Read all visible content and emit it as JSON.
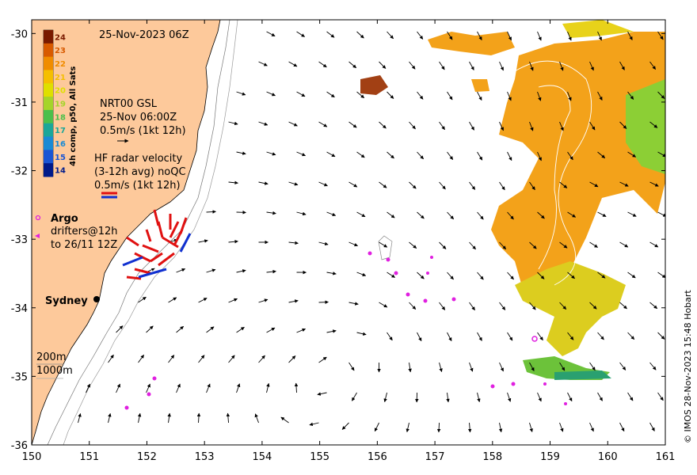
{
  "title_date": "25-Nov-2023 06Z",
  "colorbar": {
    "label": "4h comp, p50, All Sats",
    "ticks": [
      "24",
      "23",
      "22",
      "21",
      "20",
      "19",
      "18",
      "17",
      "16",
      "15",
      "14"
    ],
    "tick_colors": [
      "#7a1a00",
      "#d85a00",
      "#f08c00",
      "#f5bf00",
      "#dfdf00",
      "#a5d42a",
      "#4bbf4b",
      "#1aa699",
      "#1a8ad4",
      "#1a55d4",
      "#001a8a"
    ]
  },
  "gsl_legend": {
    "line1": "NRT00 GSL",
    "line2": "25-Nov 06:00Z",
    "line3": "0.5m/s (1kt 12h)"
  },
  "radar_legend": {
    "line1": "HF radar velocity",
    "line2": "(3-12h avg) noQC",
    "line3": "0.5m/s (1kt 12h)"
  },
  "argo_legend": {
    "argo": "Argo",
    "drifters1": "drifters@12h",
    "drifters2": "to 26/11 12Z"
  },
  "city": "Sydney",
  "depth_legend": {
    "d200": "200m",
    "d1000": "1000m"
  },
  "credit": "© IMOS 28-Nov-2023 15:48 Hobart",
  "axes": {
    "x_ticks": [
      "150",
      "151",
      "152",
      "153",
      "154",
      "155",
      "156",
      "157",
      "158",
      "159",
      "160",
      "161"
    ],
    "y_ticks": [
      "-30",
      "-31",
      "-32",
      "-33",
      "-34",
      "-35",
      "-36"
    ],
    "xlim": [
      150,
      161
    ],
    "ylim": [
      -36,
      -29.8
    ]
  },
  "colors": {
    "land": "#fdc99b",
    "radar_red": "#e01010",
    "radar_blue": "#1030d0",
    "drifter": "#e020e0",
    "sst_warm": "#f3a21a",
    "sst_yellow": "#e8d21a",
    "sst_green": "#8ccf35"
  }
}
